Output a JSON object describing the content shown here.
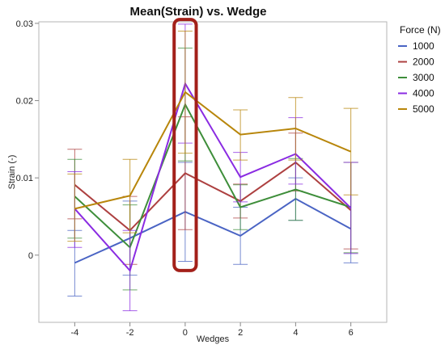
{
  "chart_data": {
    "type": "line",
    "title": "Mean(Strain) vs. Wedge",
    "xlabel": "Wedges",
    "ylabel": "Strain (-)",
    "legend_title": "Force (N)",
    "legend_position": "right",
    "x": [
      -4,
      -2,
      0,
      2,
      4,
      6
    ],
    "x_ticks": [
      "-4",
      "-2",
      "0",
      "2",
      "4",
      "6"
    ],
    "y_ticks": [
      "0",
      "0.01",
      "0.02",
      "0.03"
    ],
    "xlim": [
      -5.3,
      7.3
    ],
    "ylim": [
      -0.0087,
      0.0302
    ],
    "grid": false,
    "highlight": {
      "x_from": -0.4,
      "x_to": 0.4,
      "y_from": -0.002,
      "y_to": 0.0305,
      "color": "#a3201a"
    },
    "series": [
      {
        "name": "1000",
        "color": "#4a64c4",
        "values": [
          -0.001,
          0.0022,
          0.0056,
          0.0025,
          0.0073,
          0.0034
        ],
        "err_low": [
          -0.0053,
          -0.0026,
          -0.0008,
          -0.0012,
          0.0045,
          -0.001
        ],
        "err_high": [
          0.0032,
          0.007,
          0.012,
          0.0062,
          0.01,
          0.012
        ]
      },
      {
        "name": "2000",
        "color": "#ad4040",
        "values": [
          0.0091,
          0.0032,
          0.0106,
          0.007,
          0.012,
          0.0058
        ],
        "err_low": [
          0.0047,
          -0.0012,
          0.0033,
          0.0048,
          0.0083,
          0.0008
        ],
        "err_high": [
          0.0137,
          0.0076,
          0.0179,
          0.0092,
          0.0158,
          0.012
        ]
      },
      {
        "name": "3000",
        "color": "#3e8e3a",
        "values": [
          0.0076,
          0.001,
          0.0195,
          0.0062,
          0.0085,
          0.0062
        ],
        "err_low": [
          0.0022,
          -0.0045,
          0.0122,
          0.0033,
          0.0045,
          0.0003
        ],
        "err_high": [
          0.0124,
          0.0065,
          0.0268,
          0.0091,
          0.0125,
          0.012
        ]
      },
      {
        "name": "4000",
        "color": "#8a2be2",
        "values": [
          0.006,
          -0.002,
          0.0222,
          0.0101,
          0.0131,
          0.0061
        ],
        "err_low": [
          0.001,
          -0.0072,
          0.0145,
          0.0069,
          0.0092,
          0.0002
        ],
        "err_high": [
          0.0108,
          0.0032,
          0.0299,
          0.0133,
          0.0178,
          0.012
        ]
      },
      {
        "name": "5000",
        "color": "#b8860b",
        "values": [
          0.006,
          0.0077,
          0.0211,
          0.0156,
          0.0164,
          0.0134
        ],
        "err_low": [
          0.0018,
          0.0029,
          0.0132,
          0.0123,
          0.0123,
          0.0078
        ],
        "err_high": [
          0.0105,
          0.0124,
          0.029,
          0.0188,
          0.0204,
          0.019
        ]
      }
    ]
  }
}
